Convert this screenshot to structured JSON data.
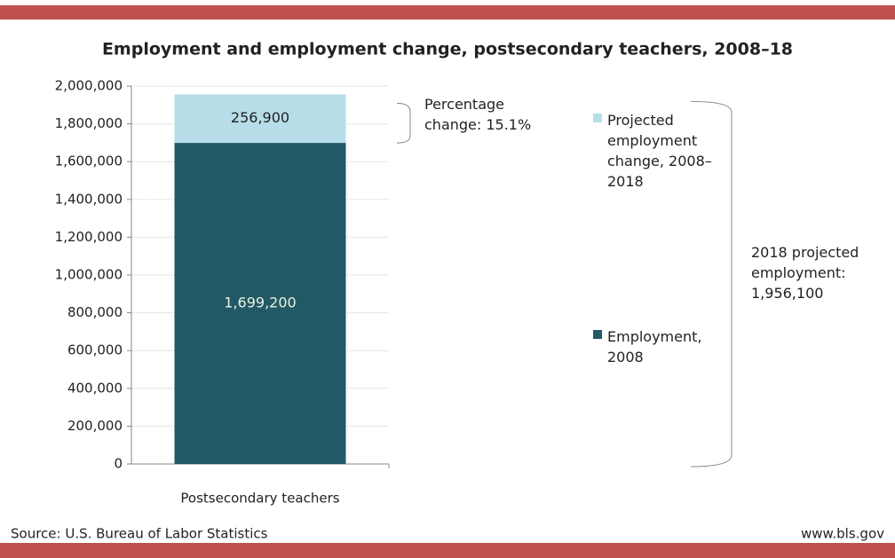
{
  "chart_data": {
    "type": "stacked_bar",
    "title": "Employment and employment change, postsecondary teachers, 2008–18",
    "categories": [
      "Postsecondary teachers"
    ],
    "series": [
      {
        "name": "Employment, 2008",
        "color": "#215967",
        "values": [
          1699200
        ],
        "value_labels": [
          "1,699,200"
        ]
      },
      {
        "name": "Projected employment change, 2008–2018",
        "color": "#b7dee8",
        "values": [
          256900
        ],
        "value_labels": [
          "256,900"
        ]
      }
    ],
    "ylim": [
      0,
      2000000
    ],
    "yticks": [
      0,
      {
        "value": 200000,
        "label": "200,000"
      },
      {
        "value": 400000,
        "label": "400,000"
      },
      {
        "value": 600000,
        "label": "600,000"
      },
      {
        "value": 800000,
        "label": "800,000"
      },
      {
        "value": 1000000,
        "label": "1,000,000"
      },
      {
        "value": 1200000,
        "label": "1,200,000"
      },
      {
        "value": 1400000,
        "label": "1,400,000"
      },
      {
        "value": 1600000,
        "label": "1,600,000"
      },
      {
        "value": 1800000,
        "label": "1,800,000"
      },
      {
        "value": 2000000,
        "label": "2,000,000"
      }
    ],
    "grid": true,
    "annotations": [
      "Percentage change: 15.1%",
      "2018 projected employment: 1,956,100"
    ],
    "source": "Source: U.S. Bureau of Labor Statistics",
    "website": "www.bls.gov"
  }
}
